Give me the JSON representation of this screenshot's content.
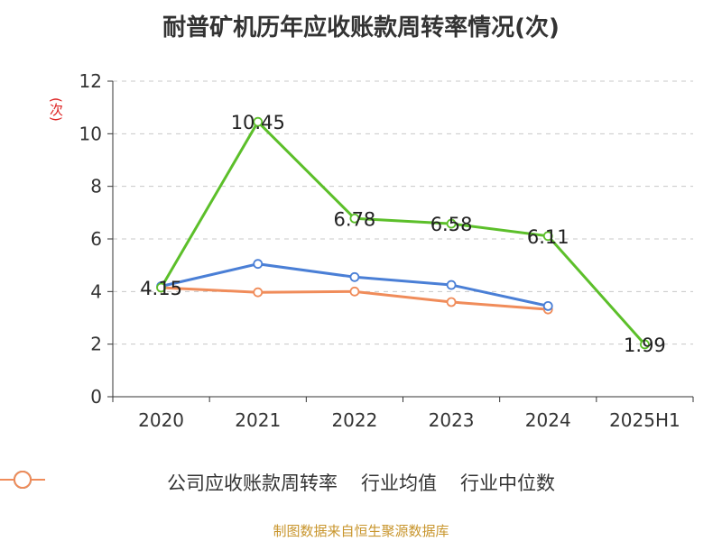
{
  "title": "耐普矿机历年应收账款周转率情况(次)",
  "unit_label": "(次)",
  "footer": "制图数据来自恒生聚源数据库",
  "chart_data": {
    "type": "line",
    "categories": [
      "2020",
      "2021",
      "2022",
      "2023",
      "2024",
      "2025H1"
    ],
    "ylim": [
      0,
      12
    ],
    "yticks": [
      0,
      2,
      4,
      6,
      8,
      10,
      12
    ],
    "grid": true,
    "legend_position": "bottom",
    "series": [
      {
        "name": "公司应收账款周转率",
        "color": "#5cbf2a",
        "values": [
          4.15,
          10.45,
          6.78,
          6.58,
          6.11,
          1.99
        ],
        "labels": [
          "4.15",
          "10.45",
          "6.78",
          "6.58",
          "6.11",
          "1.99"
        ]
      },
      {
        "name": "行业均值",
        "color": "#4a7fd6",
        "values": [
          4.2,
          5.05,
          4.55,
          4.25,
          3.45,
          null
        ]
      },
      {
        "name": "行业中位数",
        "color": "#f08c5a",
        "values": [
          4.15,
          3.97,
          4.0,
          3.6,
          3.32,
          null
        ]
      }
    ]
  }
}
